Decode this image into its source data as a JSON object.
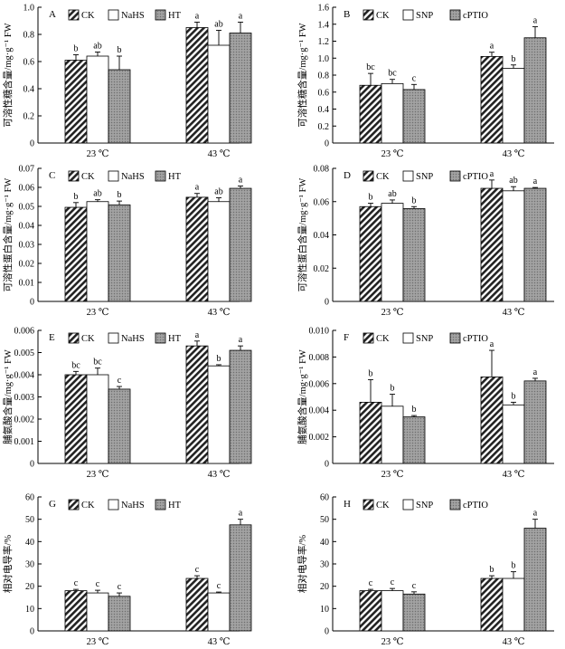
{
  "chart_data": [
    {
      "panel_label": "A",
      "type": "bar",
      "ylabel": "可溶性糖含量/mg·g⁻¹ FW",
      "ylim": [
        0,
        1.0
      ],
      "yticks": [
        "0",
        "0.2",
        "0.4",
        "0.6",
        "0.8",
        "1.0"
      ],
      "categories": [
        "23 ℃",
        "43 ℃"
      ],
      "series": [
        {
          "name": "CK",
          "pattern": "hatch",
          "values": [
            0.61,
            0.85
          ],
          "errors": [
            0.04,
            0.04
          ],
          "letters": [
            "b",
            "a"
          ]
        },
        {
          "name": "NaHS",
          "pattern": "white",
          "values": [
            0.64,
            0.72
          ],
          "errors": [
            0.03,
            0.11
          ],
          "letters": [
            "ab",
            "ab"
          ]
        },
        {
          "name": "HT",
          "pattern": "grey",
          "values": [
            0.54,
            0.81
          ],
          "errors": [
            0.1,
            0.08
          ],
          "letters": [
            "b",
            "a"
          ]
        }
      ]
    },
    {
      "panel_label": "B",
      "type": "bar",
      "ylabel": "可溶性糖含量/mg·g⁻¹ FW",
      "ylim": [
        0,
        1.6
      ],
      "yticks": [
        "0",
        "0.2",
        "0.4",
        "0.6",
        "0.8",
        "1.0",
        "1.2",
        "1.4",
        "1.6"
      ],
      "categories": [
        "23 ℃",
        "43 ℃"
      ],
      "series": [
        {
          "name": "CK",
          "pattern": "hatch",
          "values": [
            0.68,
            1.02
          ],
          "errors": [
            0.14,
            0.05
          ],
          "letters": [
            "bc",
            "a"
          ]
        },
        {
          "name": "SNP",
          "pattern": "white",
          "values": [
            0.7,
            0.88
          ],
          "errors": [
            0.05,
            0.04
          ],
          "letters": [
            "bc",
            "b"
          ]
        },
        {
          "name": "cPTIO",
          "pattern": "grey",
          "values": [
            0.63,
            1.24
          ],
          "errors": [
            0.06,
            0.13
          ],
          "letters": [
            "c",
            "a"
          ]
        }
      ]
    },
    {
      "panel_label": "C",
      "type": "bar",
      "ylabel": "可溶性蛋白含量/mg·g⁻¹ FW",
      "ylim": [
        0,
        0.07
      ],
      "yticks": [
        "0",
        "0.01",
        "0.02",
        "0.03",
        "0.04",
        "0.05",
        "0.06",
        "0.07"
      ],
      "categories": [
        "23 ℃",
        "43 ℃"
      ],
      "series": [
        {
          "name": "CK",
          "pattern": "hatch",
          "values": [
            0.0495,
            0.0548
          ],
          "errors": [
            0.0025,
            0.002
          ],
          "letters": [
            "b",
            "a"
          ]
        },
        {
          "name": "NaHS",
          "pattern": "white",
          "values": [
            0.0525,
            0.0525
          ],
          "errors": [
            0.001,
            0.002
          ],
          "letters": [
            "ab",
            "ab"
          ]
        },
        {
          "name": "HT",
          "pattern": "grey",
          "values": [
            0.0508,
            0.0595
          ],
          "errors": [
            0.002,
            0.0012
          ],
          "letters": [
            "b",
            "a"
          ]
        }
      ]
    },
    {
      "panel_label": "D",
      "type": "bar",
      "ylabel": "可溶性蛋白含量/mg·g⁻¹ FW",
      "ylim": [
        0,
        0.08
      ],
      "yticks": [
        "0",
        "0.02",
        "0.04",
        "0.06",
        "0.08"
      ],
      "categories": [
        "23 ℃",
        "43 ℃"
      ],
      "series": [
        {
          "name": "CK",
          "pattern": "hatch",
          "values": [
            0.057,
            0.068
          ],
          "errors": [
            0.002,
            0.005
          ],
          "letters": [
            "b",
            "a"
          ]
        },
        {
          "name": "SNP",
          "pattern": "white",
          "values": [
            0.059,
            0.0665
          ],
          "errors": [
            0.002,
            0.0025
          ],
          "letters": [
            "ab",
            "ab"
          ]
        },
        {
          "name": "cPTIO",
          "pattern": "grey",
          "values": [
            0.0558,
            0.068
          ],
          "errors": [
            0.0012,
            0.0005
          ],
          "letters": [
            "b",
            "a"
          ]
        }
      ]
    },
    {
      "panel_label": "E",
      "type": "bar",
      "ylabel": "脯氨酸含量/mg·g⁻¹ FW",
      "ylim": [
        0,
        0.006
      ],
      "yticks": [
        "0",
        "0.001",
        "0.002",
        "0.003",
        "0.004",
        "0.005",
        "0.006"
      ],
      "categories": [
        "23 ℃",
        "43 ℃"
      ],
      "series": [
        {
          "name": "CK",
          "pattern": "hatch",
          "values": [
            0.004,
            0.0053
          ],
          "errors": [
            0.00015,
            0.00022
          ],
          "letters": [
            "bc",
            "a"
          ]
        },
        {
          "name": "NaHS",
          "pattern": "white",
          "values": [
            0.004,
            0.0044
          ],
          "errors": [
            0.0003,
            5e-05
          ],
          "letters": [
            "bc",
            "b"
          ]
        },
        {
          "name": "HT",
          "pattern": "grey",
          "values": [
            0.00335,
            0.0051
          ],
          "errors": [
            0.00012,
            0.0002
          ],
          "letters": [
            "c",
            "a"
          ]
        }
      ]
    },
    {
      "panel_label": "F",
      "type": "bar",
      "ylabel": "脯氨酸含量/mg·g⁻¹ FW",
      "ylim": [
        0,
        0.01
      ],
      "yticks": [
        "0",
        "0.002",
        "0.004",
        "0.006",
        "0.008",
        "0.010"
      ],
      "categories": [
        "23 ℃",
        "43 ℃"
      ],
      "series": [
        {
          "name": "CK",
          "pattern": "hatch",
          "values": [
            0.0046,
            0.0065
          ],
          "errors": [
            0.0017,
            0.002
          ],
          "letters": [
            "b",
            "a"
          ]
        },
        {
          "name": "SNP",
          "pattern": "white",
          "values": [
            0.0043,
            0.0044
          ],
          "errors": [
            0.0009,
            0.0002
          ],
          "letters": [
            "b",
            "b"
          ]
        },
        {
          "name": "cPTIO",
          "pattern": "grey",
          "values": [
            0.0035,
            0.0062
          ],
          "errors": [
            0.0001,
            0.0002
          ],
          "letters": [
            "b",
            "a"
          ]
        }
      ]
    },
    {
      "panel_label": "G",
      "type": "bar",
      "ylabel": "相对电导率/%",
      "ylim": [
        0,
        60
      ],
      "yticks": [
        "0",
        "10",
        "20",
        "30",
        "40",
        "50",
        "60"
      ],
      "categories": [
        "23 ℃",
        "43 ℃"
      ],
      "series": [
        {
          "name": "CK",
          "pattern": "hatch",
          "values": [
            18.0,
            23.5
          ],
          "errors": [
            0.6,
            1.2
          ],
          "letters": [
            "c",
            "c"
          ]
        },
        {
          "name": "NaHS",
          "pattern": "white",
          "values": [
            17.0,
            17.0
          ],
          "errors": [
            1.2,
            0.4
          ],
          "letters": [
            "c",
            "c"
          ]
        },
        {
          "name": "HT",
          "pattern": "grey",
          "values": [
            15.5,
            47.5
          ],
          "errors": [
            1.5,
            2.5
          ],
          "letters": [
            "c",
            "a"
          ]
        }
      ]
    },
    {
      "panel_label": "H",
      "type": "bar",
      "ylabel": "相对电导率/%",
      "ylim": [
        0,
        60
      ],
      "yticks": [
        "0",
        "10",
        "20",
        "30",
        "40",
        "50",
        "60"
      ],
      "categories": [
        "23 ℃",
        "43 ℃"
      ],
      "series": [
        {
          "name": "CK",
          "pattern": "hatch",
          "values": [
            18.0,
            23.5
          ],
          "errors": [
            0.6,
            1.2
          ],
          "letters": [
            "c",
            "b"
          ]
        },
        {
          "name": "SNP",
          "pattern": "white",
          "values": [
            18.0,
            23.5
          ],
          "errors": [
            1.0,
            3.0
          ],
          "letters": [
            "c",
            "b"
          ]
        },
        {
          "name": "cPTIO",
          "pattern": "grey",
          "values": [
            16.5,
            46.0
          ],
          "errors": [
            1.0,
            4.0
          ],
          "letters": [
            "c",
            "a"
          ]
        }
      ]
    }
  ]
}
